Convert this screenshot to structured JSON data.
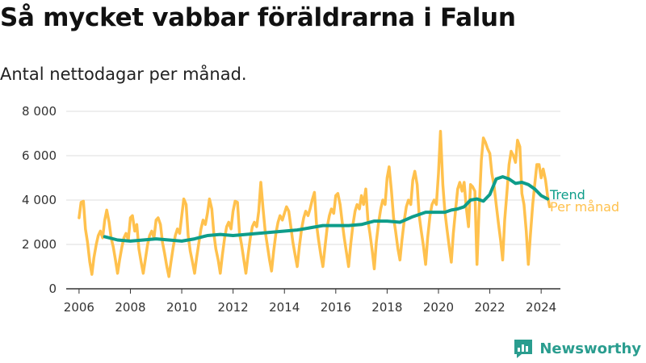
{
  "title": "Så mycket vabbar föräldrarna i Falun",
  "subtitle": "Antal nettodagar per månad.",
  "brand": {
    "name": "Newsworthy",
    "logo_icon": "newsworthy-logo-icon"
  },
  "colors": {
    "monthly": "#FFC14D",
    "trend": "#0E9D8A",
    "grid": "#dddddd",
    "axis": "#333333",
    "brand": "#2a9d8f"
  },
  "chart_data": {
    "type": "line",
    "title": "Så mycket vabbar föräldrarna i Falun",
    "subtitle": "Antal nettodagar per månad.",
    "xlabel": "",
    "ylabel": "",
    "xlim": [
      2005.5,
      2024.75
    ],
    "ylim": [
      0,
      8000
    ],
    "x_ticks": [
      2006,
      2008,
      2010,
      2012,
      2014,
      2016,
      2018,
      2020,
      2022,
      2024
    ],
    "y_ticks": [
      0,
      2000,
      4000,
      6000,
      8000
    ],
    "y_tick_labels": [
      "0",
      "2 000",
      "4 000",
      "6 000",
      "8 000"
    ],
    "grid": true,
    "legend": "right-end labels",
    "series": [
      {
        "name": "Per månad",
        "color": "#FFC14D",
        "x": [
          2006.0,
          2006.08,
          2006.17,
          2006.25,
          2006.33,
          2006.42,
          2006.5,
          2006.58,
          2006.67,
          2006.75,
          2006.83,
          2006.92,
          2007.0,
          2007.08,
          2007.17,
          2007.25,
          2007.33,
          2007.42,
          2007.5,
          2007.58,
          2007.67,
          2007.75,
          2007.83,
          2007.92,
          2008.0,
          2008.08,
          2008.17,
          2008.25,
          2008.33,
          2008.42,
          2008.5,
          2008.58,
          2008.67,
          2008.75,
          2008.83,
          2008.92,
          2009.0,
          2009.08,
          2009.17,
          2009.25,
          2009.33,
          2009.42,
          2009.5,
          2009.58,
          2009.67,
          2009.75,
          2009.83,
          2009.92,
          2010.0,
          2010.08,
          2010.17,
          2010.25,
          2010.33,
          2010.42,
          2010.5,
          2010.58,
          2010.67,
          2010.75,
          2010.83,
          2010.92,
          2011.0,
          2011.08,
          2011.17,
          2011.25,
          2011.33,
          2011.42,
          2011.5,
          2011.58,
          2011.67,
          2011.75,
          2011.83,
          2011.92,
          2012.0,
          2012.08,
          2012.17,
          2012.25,
          2012.33,
          2012.42,
          2012.5,
          2012.58,
          2012.67,
          2012.75,
          2012.83,
          2012.92,
          2013.0,
          2013.08,
          2013.17,
          2013.25,
          2013.33,
          2013.42,
          2013.5,
          2013.58,
          2013.67,
          2013.75,
          2013.83,
          2013.92,
          2014.0,
          2014.08,
          2014.17,
          2014.25,
          2014.33,
          2014.42,
          2014.5,
          2014.58,
          2014.67,
          2014.75,
          2014.83,
          2014.92,
          2015.0,
          2015.08,
          2015.17,
          2015.25,
          2015.33,
          2015.42,
          2015.5,
          2015.58,
          2015.67,
          2015.75,
          2015.83,
          2015.92,
          2016.0,
          2016.08,
          2016.17,
          2016.25,
          2016.33,
          2016.42,
          2016.5,
          2016.58,
          2016.67,
          2016.75,
          2016.83,
          2016.92,
          2017.0,
          2017.08,
          2017.17,
          2017.25,
          2017.33,
          2017.42,
          2017.5,
          2017.58,
          2017.67,
          2017.75,
          2017.83,
          2017.92,
          2018.0,
          2018.08,
          2018.17,
          2018.25,
          2018.33,
          2018.42,
          2018.5,
          2018.58,
          2018.67,
          2018.75,
          2018.83,
          2018.92,
          2019.0,
          2019.08,
          2019.17,
          2019.25,
          2019.33,
          2019.42,
          2019.5,
          2019.58,
          2019.67,
          2019.75,
          2019.83,
          2019.92,
          2020.0,
          2020.08,
          2020.17,
          2020.25,
          2020.33,
          2020.42,
          2020.5,
          2020.58,
          2020.67,
          2020.75,
          2020.83,
          2020.92,
          2021.0,
          2021.08,
          2021.17,
          2021.25,
          2021.33,
          2021.42,
          2021.5,
          2021.58,
          2021.67,
          2021.75,
          2021.83,
          2021.92,
          2022.0,
          2022.08,
          2022.17,
          2022.25,
          2022.33,
          2022.42,
          2022.5,
          2022.58,
          2022.67,
          2022.75,
          2022.83,
          2022.92,
          2023.0,
          2023.08,
          2023.17,
          2023.25,
          2023.33,
          2023.42,
          2023.5,
          2023.58,
          2023.67,
          2023.75,
          2023.83,
          2023.92,
          2024.0,
          2024.08,
          2024.17,
          2024.25,
          2024.33
        ],
        "values": [
          3200,
          3900,
          3950,
          2700,
          2100,
          1200,
          650,
          1400,
          2000,
          2400,
          2600,
          2300,
          3100,
          3550,
          3000,
          2300,
          1900,
          1300,
          700,
          1300,
          1900,
          2300,
          2500,
          2200,
          3200,
          3300,
          2600,
          2900,
          1800,
          1200,
          700,
          1300,
          2000,
          2400,
          2600,
          2300,
          3100,
          3200,
          2900,
          2100,
          1600,
          1000,
          550,
          1200,
          1900,
          2400,
          2700,
          2500,
          3300,
          4050,
          3800,
          2400,
          1700,
          1200,
          700,
          1400,
          2100,
          2700,
          3100,
          2900,
          3400,
          4050,
          3600,
          2500,
          1800,
          1300,
          700,
          1500,
          2300,
          2800,
          3000,
          2700,
          3500,
          3950,
          3900,
          2500,
          2000,
          1300,
          700,
          1500,
          2300,
          2800,
          3000,
          2800,
          3500,
          4800,
          3600,
          2600,
          2000,
          1300,
          800,
          1700,
          2500,
          3000,
          3300,
          3100,
          3400,
          3700,
          3500,
          2800,
          2100,
          1500,
          1000,
          1900,
          2700,
          3200,
          3500,
          3300,
          3600,
          4000,
          4350,
          2900,
          2200,
          1500,
          1000,
          1900,
          2800,
          3300,
          3600,
          3400,
          4200,
          4300,
          3800,
          3000,
          2300,
          1600,
          1000,
          2000,
          2900,
          3500,
          3800,
          3600,
          4200,
          3800,
          4500,
          3100,
          2500,
          1700,
          900,
          2100,
          3000,
          3600,
          4000,
          3800,
          5000,
          5500,
          4400,
          3200,
          2600,
          1800,
          1300,
          2200,
          3100,
          3700,
          4000,
          3800,
          4900,
          5300,
          4700,
          3300,
          2600,
          1900,
          1100,
          2300,
          3300,
          3800,
          4000,
          3800,
          5200,
          7100,
          4700,
          3500,
          2700,
          1900,
          1200,
          2500,
          3600,
          4500,
          4800,
          4400,
          4800,
          3700,
          2800,
          4700,
          4600,
          4400,
          1100,
          3500,
          5800,
          6800,
          6600,
          6300,
          6100,
          5200,
          4600,
          3800,
          3000,
          2200,
          1300,
          3100,
          4400,
          5600,
          6200,
          6000,
          5700,
          6700,
          6400,
          4300,
          3800,
          2600,
          1100,
          2400,
          3800,
          4700,
          5600,
          5600,
          5000,
          5400,
          4900,
          4200,
          3700
        ]
      },
      {
        "name": "Trend",
        "color": "#0E9D8A",
        "x": [
          2007.0,
          2007.5,
          2008.0,
          2008.5,
          2009.0,
          2009.5,
          2010.0,
          2010.5,
          2011.0,
          2011.5,
          2012.0,
          2012.5,
          2013.0,
          2013.5,
          2014.0,
          2014.5,
          2015.0,
          2015.5,
          2016.0,
          2016.5,
          2017.0,
          2017.5,
          2018.0,
          2018.5,
          2019.0,
          2019.5,
          2020.0,
          2020.25,
          2020.5,
          2020.75,
          2021.0,
          2021.25,
          2021.5,
          2021.75,
          2022.0,
          2022.25,
          2022.5,
          2022.75,
          2023.0,
          2023.25,
          2023.5,
          2023.75,
          2024.0,
          2024.25
        ],
        "values": [
          2350,
          2200,
          2150,
          2200,
          2250,
          2200,
          2150,
          2250,
          2400,
          2450,
          2400,
          2450,
          2500,
          2550,
          2600,
          2650,
          2750,
          2850,
          2850,
          2850,
          2900,
          3050,
          3050,
          3000,
          3250,
          3450,
          3450,
          3450,
          3550,
          3600,
          3700,
          4000,
          4050,
          3950,
          4250,
          4950,
          5050,
          4950,
          4750,
          4800,
          4700,
          4500,
          4200,
          4050
        ]
      }
    ]
  }
}
